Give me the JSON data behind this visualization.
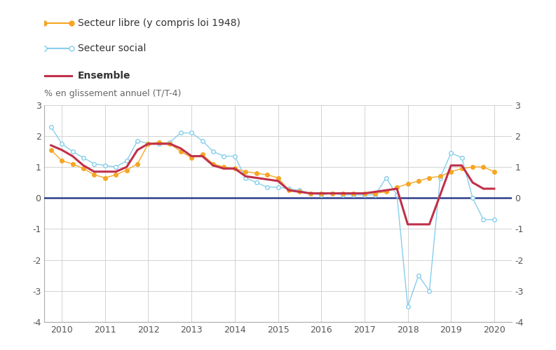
{
  "ylabel": "% en glissement annuel (T/T-4)",
  "ylim": [
    -4,
    3
  ],
  "yticks": [
    -4,
    -3,
    -2,
    -1,
    0,
    1,
    2,
    3
  ],
  "background_color": "#ffffff",
  "zero_line_color": "#2e3d8a",
  "grid_color": "#cccccc",
  "secteur_libre": {
    "label": "Secteur libre (y compris loi 1948)",
    "color": "#f5a623",
    "markersize": 4,
    "x": [
      2009.75,
      2010.0,
      2010.25,
      2010.5,
      2010.75,
      2011.0,
      2011.25,
      2011.5,
      2011.75,
      2012.0,
      2012.25,
      2012.5,
      2012.75,
      2013.0,
      2013.25,
      2013.5,
      2013.75,
      2014.0,
      2014.25,
      2014.5,
      2014.75,
      2015.0,
      2015.25,
      2015.5,
      2015.75,
      2016.0,
      2016.25,
      2016.5,
      2016.75,
      2017.0,
      2017.25,
      2017.5,
      2017.75,
      2018.0,
      2018.25,
      2018.5,
      2018.75,
      2019.0,
      2019.25,
      2019.5,
      2019.75,
      2020.0
    ],
    "y": [
      1.55,
      1.2,
      1.1,
      0.95,
      0.75,
      0.65,
      0.75,
      0.9,
      1.1,
      1.75,
      1.8,
      1.75,
      1.5,
      1.3,
      1.4,
      1.1,
      1.0,
      0.95,
      0.85,
      0.8,
      0.75,
      0.65,
      0.25,
      0.2,
      0.15,
      0.15,
      0.15,
      0.15,
      0.15,
      0.15,
      0.15,
      0.2,
      0.35,
      0.45,
      0.55,
      0.65,
      0.7,
      0.85,
      0.95,
      1.0,
      1.0,
      0.85
    ]
  },
  "secteur_social": {
    "label": "Secteur social",
    "color": "#87ceeb",
    "markersize": 4,
    "x": [
      2009.75,
      2010.0,
      2010.25,
      2010.5,
      2010.75,
      2011.0,
      2011.25,
      2011.5,
      2011.75,
      2012.0,
      2012.25,
      2012.5,
      2012.75,
      2013.0,
      2013.25,
      2013.5,
      2013.75,
      2014.0,
      2014.25,
      2014.5,
      2014.75,
      2015.0,
      2015.25,
      2015.5,
      2015.75,
      2016.0,
      2016.25,
      2016.5,
      2016.75,
      2017.0,
      2017.25,
      2017.5,
      2017.75,
      2018.0,
      2018.25,
      2018.5,
      2018.75,
      2019.0,
      2019.25,
      2019.5,
      2019.75,
      2020.0
    ],
    "y": [
      2.3,
      1.75,
      1.5,
      1.3,
      1.1,
      1.05,
      1.0,
      1.2,
      1.85,
      1.75,
      1.75,
      1.8,
      2.1,
      2.1,
      1.85,
      1.5,
      1.35,
      1.35,
      0.65,
      0.5,
      0.35,
      0.35,
      0.3,
      0.25,
      0.15,
      0.1,
      0.15,
      0.1,
      0.1,
      0.1,
      0.1,
      0.65,
      0.1,
      -3.5,
      -2.5,
      -3.0,
      0.65,
      1.45,
      1.3,
      0.0,
      -0.7,
      -0.7
    ]
  },
  "ensemble": {
    "label": "Ensemble",
    "color": "#c0304a",
    "linewidth": 2.2,
    "x": [
      2009.75,
      2010.0,
      2010.25,
      2010.5,
      2010.75,
      2011.0,
      2011.25,
      2011.5,
      2011.75,
      2012.0,
      2012.25,
      2012.5,
      2012.75,
      2013.0,
      2013.25,
      2013.5,
      2013.75,
      2014.0,
      2014.25,
      2014.5,
      2014.75,
      2015.0,
      2015.25,
      2015.5,
      2015.75,
      2016.0,
      2016.25,
      2016.5,
      2016.75,
      2017.0,
      2017.25,
      2017.5,
      2017.75,
      2018.0,
      2018.25,
      2018.5,
      2018.75,
      2019.0,
      2019.25,
      2019.5,
      2019.75,
      2020.0
    ],
    "y": [
      1.7,
      1.55,
      1.35,
      1.05,
      0.85,
      0.85,
      0.85,
      1.0,
      1.55,
      1.75,
      1.75,
      1.75,
      1.6,
      1.35,
      1.35,
      1.05,
      0.95,
      0.95,
      0.7,
      0.65,
      0.6,
      0.55,
      0.25,
      0.2,
      0.15,
      0.15,
      0.15,
      0.15,
      0.15,
      0.15,
      0.2,
      0.25,
      0.3,
      -0.85,
      -0.85,
      -0.85,
      0.1,
      1.05,
      1.05,
      0.5,
      0.3,
      0.3
    ]
  },
  "xticks": [
    2010,
    2011,
    2012,
    2013,
    2014,
    2015,
    2016,
    2017,
    2018,
    2019,
    2020
  ],
  "xlim": [
    2009.6,
    2020.4
  ]
}
